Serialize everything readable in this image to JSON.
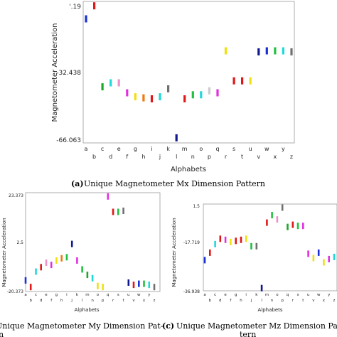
{
  "chart_data": [
    {
      "type": "scatter",
      "panel": "a",
      "caption_prefix": "(a)",
      "caption": "Unique Magnetometer Mx Dimension Pattern",
      "xlabel": "Alphabets",
      "ylabel": "Magnetometer Acceleration",
      "yticks": [
        "'.19",
        "-32.438",
        "-66.063"
      ],
      "ylim": [
        -67,
        2
      ],
      "categories_top": [
        "a",
        "c",
        "e",
        "g",
        "i",
        "k",
        "m",
        "o",
        "q",
        "s",
        "u",
        "w",
        "y"
      ],
      "categories_bottom": [
        "b",
        "d",
        "f",
        "h",
        "j",
        "l",
        "n",
        "p",
        "r",
        "t",
        "v",
        "x",
        "z"
      ],
      "categories": [
        "a",
        "b",
        "c",
        "d",
        "e",
        "f",
        "g",
        "h",
        "i",
        "j",
        "k",
        "l",
        "m",
        "n",
        "o",
        "p",
        "q",
        "r",
        "s",
        "t",
        "u",
        "v",
        "x",
        "w",
        "y",
        "z"
      ],
      "values": [
        -6,
        0.5,
        -40,
        -38,
        -38,
        -43,
        -45,
        -45.5,
        -46,
        -45,
        -41,
        -65.5,
        -46,
        -44,
        -44,
        -42,
        -43,
        -22,
        -37,
        -37,
        -37,
        -22.5,
        -22,
        -22,
        -22,
        -22.5
      ],
      "colors": [
        "#1a2fd6",
        "#e01818",
        "#1aa82a",
        "#20d8d8",
        "#f090c8",
        "#e030e0",
        "#f0e010",
        "#f07a10",
        "#e01818",
        "#20d8d8",
        "#707070",
        "#101890",
        "#e01818",
        "#20c040",
        "#20d8d8",
        "#cccccc",
        "#e030e0",
        "#f0e010",
        "#e01818",
        "#e01818",
        "#f0e010",
        "#101890",
        "#1a2fd6",
        "#20c040",
        "#20d8d8",
        "#707070"
      ]
    },
    {
      "type": "scatter",
      "panel": "b",
      "caption": "Unique Magnetometer My Dimension Pat-",
      "caption_line2": "n",
      "xlabel": "Alphabets",
      "ylabel": "Magnetometer Acceleration",
      "yticks": [
        "23.373",
        "2.5",
        "-20.373"
      ],
      "ylim": [
        -20.373,
        23.373
      ],
      "categories_top": [
        "a",
        "c",
        "e",
        "g",
        "i",
        "k",
        "m",
        "o",
        "q",
        "s",
        "u",
        "w",
        "y"
      ],
      "categories_bottom": [
        "b",
        "d",
        "f",
        "h",
        "j",
        "l",
        "n",
        "p",
        "r",
        "t",
        "v",
        "x",
        "z"
      ],
      "categories": [
        "a",
        "b",
        "c",
        "d",
        "e",
        "f",
        "g",
        "h",
        "i",
        "j",
        "k",
        "l",
        "m",
        "n",
        "o",
        "p",
        "q",
        "r",
        "s",
        "t",
        "u",
        "v",
        "w",
        "x",
        "y",
        "z"
      ],
      "values": [
        -16,
        -19,
        -12,
        -10,
        -8,
        -9,
        -7,
        -6,
        -5.5,
        0.5,
        -7,
        -11,
        -13.5,
        -15,
        -18.5,
        -19,
        22,
        15,
        15,
        15.5,
        -17,
        -18,
        -17.5,
        -17.5,
        -18,
        -19
      ],
      "colors": [
        "#1a2fd6",
        "#e01818",
        "#20d8d8",
        "#e01818",
        "#f090c8",
        "#e030e0",
        "#f0e010",
        "#f07a10",
        "#20c040",
        "#101890",
        "#e030e0",
        "#20c040",
        "#1aa82a",
        "#20d8d8",
        "#f0e010",
        "#f0e010",
        "#e030e0",
        "#e01818",
        "#20c040",
        "#707070",
        "#101890",
        "#e01818",
        "#1a2fd6",
        "#20c040",
        "#20d8d8",
        "#707070"
      ]
    },
    {
      "type": "scatter",
      "panel": "c",
      "caption_prefix": "(c)",
      "caption": "Unique Magnetometer Mz Dimension Pat-",
      "caption_line2": "tern",
      "xlabel": "Alphabets",
      "ylabel": "Magnetometer Acceleration",
      "yticks": [
        "1.5",
        "-17.719",
        "-36.938"
      ],
      "ylim": [
        -36.938,
        1.5
      ],
      "categories_top": [
        "a",
        "c",
        "e",
        "g",
        "i",
        "k",
        "m",
        "o",
        "q",
        "s",
        "u",
        "w",
        "y"
      ],
      "categories_bottom": [
        "b",
        "d",
        "f",
        "h",
        "j",
        "l",
        "n",
        "p",
        "r",
        "t",
        "v",
        "x",
        "z"
      ],
      "categories": [
        "a",
        "b",
        "c",
        "d",
        "e",
        "f",
        "g",
        "h",
        "i",
        "j",
        "k",
        "l",
        "m",
        "n",
        "o",
        "p",
        "q",
        "r",
        "s",
        "t",
        "u",
        "v",
        "w",
        "x",
        "y",
        "z"
      ],
      "values": [
        -23,
        -19.5,
        -15.5,
        -13,
        -13.5,
        -14.5,
        -14,
        -13.5,
        -13,
        -16.5,
        -16.5,
        -36,
        -5.5,
        -2,
        -4,
        1.5,
        -7.5,
        -6.5,
        -7,
        -7,
        -20,
        -22,
        -19.5,
        -24,
        -22.5,
        -21.5
      ],
      "colors": [
        "#1a2fd6",
        "#e01818",
        "#20d8d8",
        "#e01818",
        "#e030e0",
        "#f0e010",
        "#e01818",
        "#e01818",
        "#f0e010",
        "#20c040",
        "#707070",
        "#101890",
        "#e01818",
        "#20c040",
        "#f090c8",
        "#707070",
        "#1aa82a",
        "#e01818",
        "#20c040",
        "#e030e0",
        "#e030e0",
        "#f0e010",
        "#1a2fd6",
        "#f0e010",
        "#e030e0",
        "#20d8d8"
      ]
    }
  ]
}
